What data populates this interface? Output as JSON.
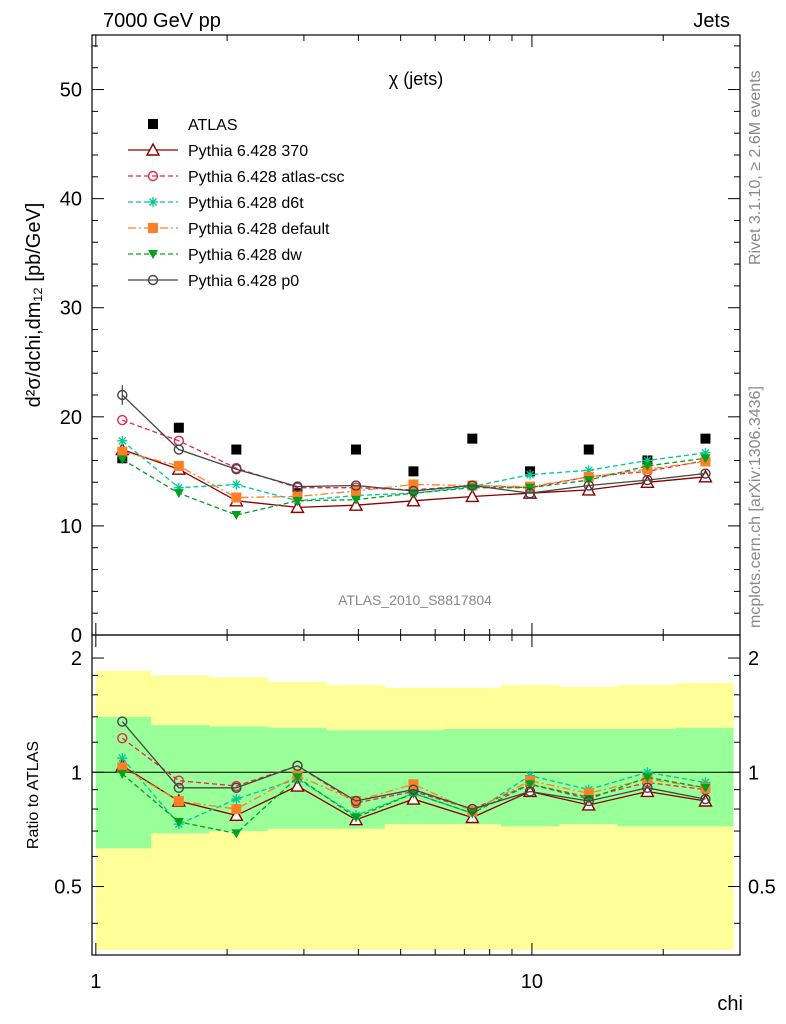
{
  "header": {
    "left": "7000 GeV pp",
    "right": "Jets"
  },
  "side_labels": {
    "rivet": "Rivet 3.1.10, ≥ 2.6M events",
    "mcplots": "mcplots.cern.ch [arXiv:1306.3436]"
  },
  "chart_data": [
    {
      "type": "scatter",
      "panel": "main",
      "title": "χ (jets)",
      "watermark": "ATLAS_2010_S8817804",
      "ylabel": "d²σ/dchi,dm₁₂ [pb/GeV]",
      "xlabel": "chi",
      "xscale": "log",
      "xlim": [
        0.98,
        30
      ],
      "ylim": [
        0,
        55
      ],
      "yticks": [
        0,
        10,
        20,
        30,
        40,
        50
      ],
      "xticks": [
        1,
        10
      ],
      "legend_position": "top-left",
      "x": [
        1.15,
        1.55,
        2.1,
        2.9,
        3.95,
        5.35,
        7.3,
        9.9,
        13.5,
        18.4,
        25.0
      ],
      "x_edges": [
        1.0,
        1.34,
        1.82,
        2.48,
        3.38,
        4.6,
        6.26,
        8.5,
        11.56,
        15.72,
        21.4,
        29.0
      ],
      "series": [
        {
          "name": "ATLAS",
          "color": "#000000",
          "marker": "square",
          "dash": "none",
          "values": [
            16.2,
            19.0,
            17.0,
            13.0,
            17.0,
            15.0,
            18.0,
            15.0,
            17.0,
            16.0,
            18.0
          ]
        },
        {
          "name": "Pythia 6.428 370",
          "color": "#8b0000",
          "marker": "triangle-open",
          "dash": "solid",
          "values": [
            17.0,
            15.2,
            12.3,
            11.7,
            11.9,
            12.3,
            12.7,
            13.0,
            13.3,
            14.0,
            14.5
          ]
        },
        {
          "name": "Pythia 6.428 atlas-csc",
          "color": "#e8264d",
          "marker": "circle-open",
          "dash": "5,3",
          "values": [
            19.7,
            17.8,
            15.3,
            13.5,
            13.5,
            13.3,
            13.7,
            13.5,
            14.5,
            15.0,
            16.0
          ]
        },
        {
          "name": "Pythia 6.428 d6t",
          "color": "#00c896",
          "marker": "star",
          "dash": "5,3",
          "values": [
            17.8,
            13.5,
            13.8,
            12.3,
            12.8,
            13.0,
            13.6,
            14.7,
            15.1,
            16.0,
            16.7
          ]
        },
        {
          "name": "Pythia 6.428 default",
          "color": "#ff7f27",
          "marker": "square",
          "dash": "8,3,2,3",
          "values": [
            16.8,
            15.5,
            12.6,
            12.7,
            13.2,
            13.8,
            13.7,
            13.6,
            14.5,
            15.2,
            15.9
          ]
        },
        {
          "name": "Pythia 6.428 dw",
          "color": "#00a020",
          "marker": "triangle-down",
          "dash": "5,3",
          "values": [
            16.1,
            13.0,
            11.0,
            12.3,
            12.4,
            13.0,
            13.5,
            13.5,
            14.2,
            15.5,
            16.2
          ]
        },
        {
          "name": "Pythia 6.428 p0",
          "color": "#444444",
          "marker": "circle-open",
          "dash": "solid",
          "values": [
            22.0,
            17.0,
            15.2,
            13.6,
            13.7,
            13.2,
            13.7,
            13.0,
            13.7,
            14.2,
            14.8
          ]
        }
      ]
    },
    {
      "type": "scatter",
      "panel": "ratio",
      "ylabel": "Ratio to ATLAS",
      "ylim": [
        0.33,
        2.3
      ],
      "yticks": [
        0.5,
        1,
        2
      ],
      "yticklabels": [
        "0.5",
        "1",
        "2"
      ],
      "band_outer": {
        "color": "#ffff99",
        "lower": [
          0.34,
          0.34,
          0.34,
          0.34,
          0.34,
          0.34,
          0.34,
          0.34,
          0.34,
          0.34,
          0.34
        ],
        "upper": [
          1.85,
          1.8,
          1.78,
          1.73,
          1.7,
          1.67,
          1.67,
          1.7,
          1.68,
          1.7,
          1.72
        ]
      },
      "band_inner": {
        "color": "#99ff99",
        "lower": [
          0.63,
          0.69,
          0.7,
          0.71,
          0.71,
          0.73,
          0.73,
          0.72,
          0.73,
          0.72,
          0.72
        ],
        "upper": [
          1.4,
          1.33,
          1.32,
          1.31,
          1.29,
          1.29,
          1.3,
          1.3,
          1.3,
          1.3,
          1.31
        ]
      },
      "series": [
        {
          "name": "Pythia 6.428 370",
          "values": [
            1.04,
            0.84,
            0.77,
            0.92,
            0.75,
            0.85,
            0.76,
            0.89,
            0.82,
            0.89,
            0.84
          ]
        },
        {
          "name": "Pythia 6.428 atlas-csc",
          "values": [
            1.23,
            0.95,
            0.92,
            1.04,
            0.83,
            0.89,
            0.8,
            0.93,
            0.86,
            0.94,
            0.9
          ]
        },
        {
          "name": "Pythia 6.428 d6t",
          "values": [
            1.09,
            0.73,
            0.85,
            0.96,
            0.77,
            0.88,
            0.78,
            0.98,
            0.9,
            1.0,
            0.94
          ]
        },
        {
          "name": "Pythia 6.428 default",
          "values": [
            1.03,
            0.84,
            0.8,
            0.98,
            0.84,
            0.93,
            0.79,
            0.95,
            0.88,
            0.96,
            0.91
          ]
        },
        {
          "name": "Pythia 6.428 dw",
          "values": [
            0.99,
            0.74,
            0.69,
            0.97,
            0.76,
            0.88,
            0.78,
            0.93,
            0.85,
            0.97,
            0.91
          ]
        },
        {
          "name": "Pythia 6.428 p0",
          "values": [
            1.36,
            0.91,
            0.91,
            1.04,
            0.84,
            0.9,
            0.8,
            0.89,
            0.84,
            0.91,
            0.85
          ]
        }
      ]
    }
  ]
}
